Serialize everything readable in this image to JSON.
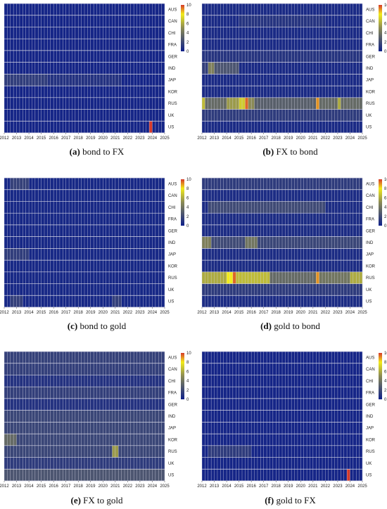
{
  "figure": {
    "colors": {
      "low": "#0d1f8a",
      "mid": "#8a8a55",
      "high_yellow": "#f2ec1a",
      "max": "#d63a2a",
      "grid": "#d8d8e6"
    },
    "colorbar_ticks": [
      "10",
      "8",
      "6",
      "4",
      "2",
      "0"
    ]
  },
  "chart_data": [
    {
      "id": "a",
      "type": "heatmap",
      "caption_tag": "(a)",
      "caption_text": " bond to FX",
      "x_tick_labels": [
        "2012",
        "2013",
        "2014",
        "2015",
        "2016",
        "2017",
        "2018",
        "2019",
        "2020",
        "2021",
        "2022",
        "2023",
        "2024",
        "2025"
      ],
      "y_labels": [
        "AUS",
        "CAN",
        "CHI",
        "FRA",
        "GER",
        "IND",
        "JAP",
        "KOR",
        "RUS",
        "UK",
        "US"
      ],
      "color_range": [
        0,
        10
      ],
      "base_value": 0.3,
      "highlights": [
        {
          "row": "JAP",
          "x_from": 2012.0,
          "x_to": 2015.4,
          "value": 1.4
        },
        {
          "row": "JAP",
          "x_from": 2015.4,
          "x_to": 2021.5,
          "value": 0.9
        },
        {
          "row": "US",
          "x_from": 2023.75,
          "x_to": 2024.0,
          "value": 10
        }
      ]
    },
    {
      "id": "b",
      "type": "heatmap",
      "caption_tag": "(b)",
      "caption_text": " FX to bond",
      "x_tick_labels": [
        "2012",
        "2013",
        "2014",
        "2015",
        "2016",
        "2017",
        "2018",
        "2019",
        "2020",
        "2021",
        "2022",
        "2023",
        "2024",
        "2025"
      ],
      "y_labels": [
        "AUS",
        "CAN",
        "CHI",
        "FRA",
        "GER",
        "IND",
        "JAP",
        "KOR",
        "RUS",
        "UK",
        "US"
      ],
      "color_range": [
        0,
        10
      ],
      "base_value": 0.5,
      "highlights": [
        {
          "row": "IND",
          "x_from": 2012.0,
          "x_to": 2012.5,
          "value": 1.5
        },
        {
          "row": "IND",
          "x_from": 2012.5,
          "x_to": 2013.0,
          "value": 4.5
        },
        {
          "row": "IND",
          "x_from": 2013.0,
          "x_to": 2015.0,
          "value": 2.5
        },
        {
          "row": "RUS",
          "x_from": 2012.0,
          "x_to": 2012.25,
          "value": 6.5
        },
        {
          "row": "RUS",
          "x_from": 2012.25,
          "x_to": 2014.0,
          "value": 3.5
        },
        {
          "row": "RUS",
          "x_from": 2014.0,
          "x_to": 2015.0,
          "value": 5.5
        },
        {
          "row": "RUS",
          "x_from": 2015.0,
          "x_to": 2015.5,
          "value": 7
        },
        {
          "row": "RUS",
          "x_from": 2015.5,
          "x_to": 2015.75,
          "value": 9.5
        },
        {
          "row": "RUS",
          "x_from": 2015.75,
          "x_to": 2016.25,
          "value": 5
        },
        {
          "row": "RUS",
          "x_from": 2016.25,
          "x_to": 2021.25,
          "value": 3
        },
        {
          "row": "RUS",
          "x_from": 2021.25,
          "x_to": 2021.5,
          "value": 9
        },
        {
          "row": "RUS",
          "x_from": 2021.5,
          "x_to": 2023.0,
          "value": 3.5
        },
        {
          "row": "RUS",
          "x_from": 2023.0,
          "x_to": 2023.25,
          "value": 6
        },
        {
          "row": "RUS",
          "x_from": 2023.25,
          "x_to": 2025.0,
          "value": 3.5
        },
        {
          "row": "UK",
          "x_from": 2012.0,
          "x_to": 2025.0,
          "value": 1.3
        },
        {
          "row": "CAN",
          "x_from": 2015.0,
          "x_to": 2022.0,
          "value": 1.0
        },
        {
          "row": "GER",
          "x_from": 2012.0,
          "x_to": 2025.0,
          "value": 1.0
        }
      ]
    },
    {
      "id": "c",
      "type": "heatmap",
      "caption_tag": "(c)",
      "caption_text": " bond to gold",
      "x_tick_labels": [
        "2012",
        "2013",
        "2014",
        "2015",
        "2016",
        "2017",
        "2018",
        "2019",
        "2020",
        "2021",
        "2022",
        "2023",
        "2024",
        "2025"
      ],
      "y_labels": [
        "AUS",
        "CAN",
        "CHI",
        "FRA",
        "GER",
        "IND",
        "JAP",
        "KOR",
        "RUS",
        "UK",
        "US"
      ],
      "color_range": [
        0,
        10
      ],
      "base_value": 0.4,
      "highlights": [
        {
          "row": "AUS",
          "x_from": 2012.5,
          "x_to": 2014.0,
          "value": 1.6
        },
        {
          "row": "JAP",
          "x_from": 2012.0,
          "x_to": 2014.0,
          "value": 1.4
        },
        {
          "row": "US",
          "x_from": 2012.5,
          "x_to": 2013.5,
          "value": 1.5
        },
        {
          "row": "US",
          "x_from": 2020.75,
          "x_to": 2021.5,
          "value": 1.5
        }
      ]
    },
    {
      "id": "d",
      "type": "heatmap",
      "caption_tag": "(d)",
      "caption_text": " gold to bond",
      "x_tick_labels": [
        "2012",
        "2013",
        "2014",
        "2015",
        "2016",
        "2017",
        "2018",
        "2019",
        "2020",
        "2021",
        "2022",
        "2023",
        "2024",
        "2025"
      ],
      "y_labels": [
        "AUS",
        "CAN",
        "CHI",
        "FRA",
        "GER",
        "IND",
        "JAP",
        "KOR",
        "RUS",
        "UK",
        "US"
      ],
      "color_range": [
        0,
        10
      ],
      "base_value": 0.6,
      "highlights": [
        {
          "row": "AUS",
          "x_from": 2012.0,
          "x_to": 2025.0,
          "value": 1.3
        },
        {
          "row": "CHI",
          "x_from": 2012.5,
          "x_to": 2022.0,
          "value": 2.0
        },
        {
          "row": "IND",
          "x_from": 2012.0,
          "x_to": 2012.75,
          "value": 4.5
        },
        {
          "row": "IND",
          "x_from": 2012.75,
          "x_to": 2015.5,
          "value": 2.0
        },
        {
          "row": "IND",
          "x_from": 2015.5,
          "x_to": 2016.5,
          "value": 4.0
        },
        {
          "row": "IND",
          "x_from": 2016.5,
          "x_to": 2025.0,
          "value": 1.8
        },
        {
          "row": "RUS",
          "x_from": 2012.0,
          "x_to": 2014.0,
          "value": 6.0
        },
        {
          "row": "RUS",
          "x_from": 2014.0,
          "x_to": 2014.5,
          "value": 8.0
        },
        {
          "row": "RUS",
          "x_from": 2014.5,
          "x_to": 2014.75,
          "value": 9.5
        },
        {
          "row": "RUS",
          "x_from": 2014.75,
          "x_to": 2017.5,
          "value": 6.5
        },
        {
          "row": "RUS",
          "x_from": 2017.5,
          "x_to": 2021.25,
          "value": 3.5
        },
        {
          "row": "RUS",
          "x_from": 2021.25,
          "x_to": 2021.5,
          "value": 9.0
        },
        {
          "row": "RUS",
          "x_from": 2021.5,
          "x_to": 2024.0,
          "value": 4.0
        },
        {
          "row": "RUS",
          "x_from": 2024.0,
          "x_to": 2025.0,
          "value": 6.0
        },
        {
          "row": "UK",
          "x_from": 2012.0,
          "x_to": 2025.0,
          "value": 1.3
        }
      ]
    },
    {
      "id": "e",
      "type": "heatmap",
      "caption_tag": "(e)",
      "caption_text": " FX to gold",
      "x_tick_labels": [
        "2012",
        "2013",
        "2014",
        "2015",
        "2016",
        "2017",
        "2018",
        "2019",
        "2020",
        "2021",
        "2022",
        "2023",
        "2024",
        "2025"
      ],
      "y_labels": [
        "AUS",
        "CAN",
        "CHI",
        "FRA",
        "GER",
        "IND",
        "JAP",
        "KOR",
        "RUS",
        "UK",
        "US"
      ],
      "color_range": [
        0,
        10
      ],
      "base_value": 0.9,
      "highlights": [
        {
          "row": "AUS",
          "x_from": 2012.0,
          "x_to": 2025.0,
          "value": 1.6
        },
        {
          "row": "CAN",
          "x_from": 2012.0,
          "x_to": 2025.0,
          "value": 1.5
        },
        {
          "row": "FRA",
          "x_from": 2012.0,
          "x_to": 2025.0,
          "value": 1.5
        },
        {
          "row": "IND",
          "x_from": 2012.0,
          "x_to": 2025.0,
          "value": 1.8
        },
        {
          "row": "JAP",
          "x_from": 2012.0,
          "x_to": 2025.0,
          "value": 1.8
        },
        {
          "row": "KOR",
          "x_from": 2012.0,
          "x_to": 2013.0,
          "value": 3.5
        },
        {
          "row": "KOR",
          "x_from": 2013.0,
          "x_to": 2025.0,
          "value": 1.8
        },
        {
          "row": "RUS",
          "x_from": 2012.0,
          "x_to": 2025.0,
          "value": 1.8
        },
        {
          "row": "RUS",
          "x_from": 2020.75,
          "x_to": 2021.25,
          "value": 5.5
        },
        {
          "row": "UK",
          "x_from": 2012.0,
          "x_to": 2025.0,
          "value": 1.3
        },
        {
          "row": "US",
          "x_from": 2012.0,
          "x_to": 2025.0,
          "value": 2.5
        }
      ]
    },
    {
      "id": "f",
      "type": "heatmap",
      "caption_tag": "(f)",
      "caption_text": " gold to FX",
      "x_tick_labels": [
        "2012",
        "2013",
        "2014",
        "2015",
        "2016",
        "2017",
        "2018",
        "2019",
        "2020",
        "2021",
        "2022",
        "2023",
        "2024",
        "2025"
      ],
      "y_labels": [
        "AUS",
        "CAN",
        "CHI",
        "FRA",
        "GER",
        "IND",
        "JAP",
        "KOR",
        "RUS",
        "UK",
        "US"
      ],
      "color_range": [
        0,
        10
      ],
      "base_value": 0.3,
      "highlights": [
        {
          "row": "RUS",
          "x_from": 2012.5,
          "x_to": 2016.0,
          "value": 1.3
        },
        {
          "row": "US",
          "x_from": 2023.75,
          "x_to": 2024.0,
          "value": 10
        }
      ]
    }
  ]
}
